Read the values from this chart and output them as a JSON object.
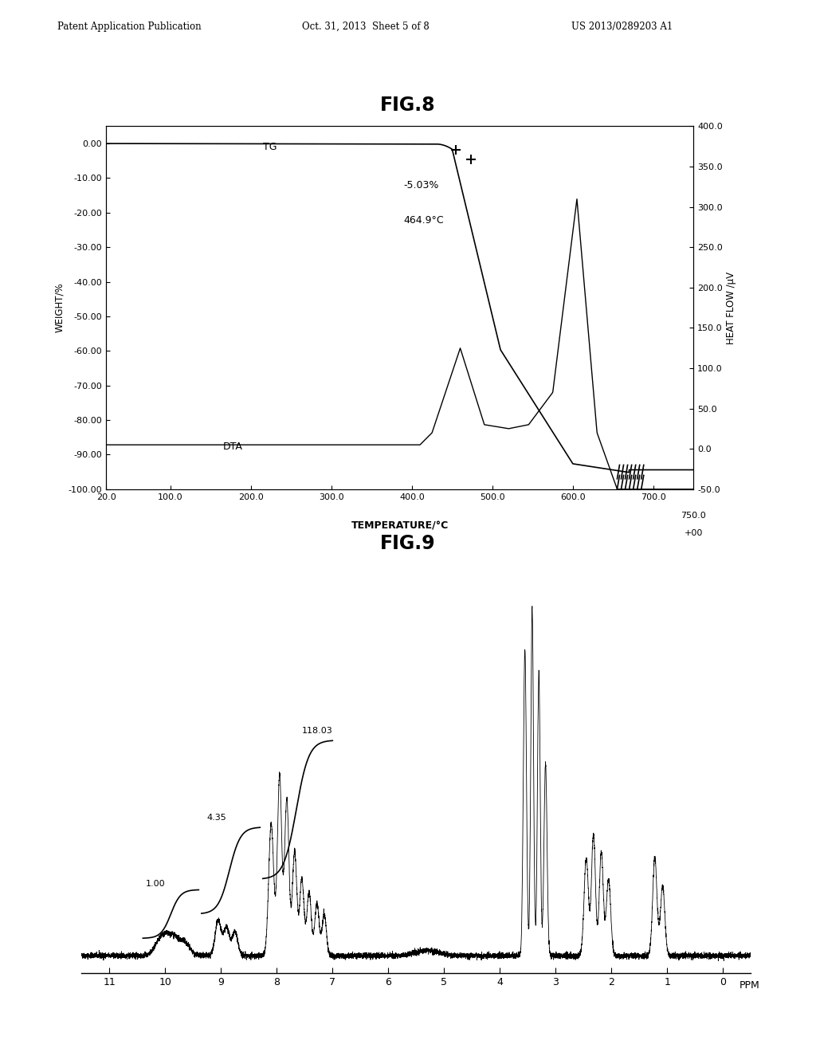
{
  "fig8_title": "FIG.8",
  "fig9_title": "FIG.9",
  "header_left": "Patent Application Publication",
  "header_center": "Oct. 31, 2013  Sheet 5 of 8",
  "header_right": "US 2013/0289203 A1",
  "fig8": {
    "tg_label": "TG",
    "dta_label": "DTA",
    "annotation1": "-5.03%",
    "annotation2": "464.9°C",
    "xlabel": "TEMPERATURE/°C",
    "ylabel_left": "WEIGHT/%",
    "ylabel_right": "HEAT FLOW /μV",
    "xlim": [
      20.0,
      750.0
    ],
    "ylim_left": [
      -100.0,
      5.0
    ],
    "ylim_right": [
      -50.0,
      400.0
    ],
    "xticks": [
      20.0,
      100.0,
      200.0,
      300.0,
      400.0,
      500.0,
      600.0,
      700.0
    ],
    "yticks_left": [
      0.0,
      -10.0,
      -20.0,
      -30.0,
      -40.0,
      -50.0,
      -60.0,
      -70.0,
      -80.0,
      -90.0,
      -100.0
    ],
    "yticks_right": [
      400.0,
      350.0,
      300.0,
      250.0,
      200.0,
      150.0,
      100.0,
      50.0,
      0.0,
      -50.0
    ],
    "extra_xtick_val": 750.0,
    "extra_xtick_lab1": "750.0",
    "extra_xtick_lab2": "+00"
  },
  "fig9": {
    "xlabel": "PPM",
    "xlim": [
      11.5,
      -0.5
    ],
    "xticks": [
      11,
      10,
      9,
      8,
      7,
      6,
      5,
      4,
      3,
      2,
      1,
      0
    ]
  },
  "background_color": "#ffffff",
  "line_color": "#000000"
}
